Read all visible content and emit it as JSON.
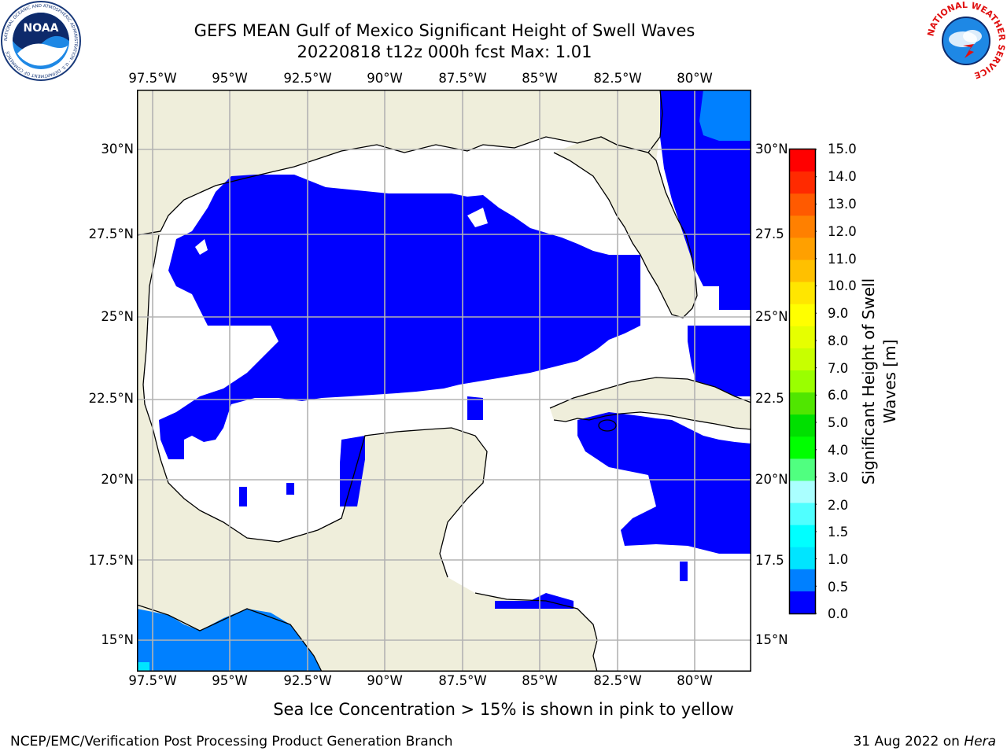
{
  "title": {
    "line1": "GEFS MEAN Gulf of Mexico Significant Height of Swell Waves",
    "line2": "20220818 t12z 000h fcst   Max: 1.01"
  },
  "logos": {
    "noaa": {
      "text": "NOAA",
      "ring_text": "NATIONAL OCEANIC AND ATMOSPHERIC ADMINISTRATION · U.S. DEPARTMENT OF COMMERCE",
      "icon": "noaa-logo-icon"
    },
    "nws": {
      "ring_text": "NATIONAL WEATHER SERVICE",
      "icon": "nws-logo-icon"
    }
  },
  "map": {
    "lon_labels": [
      "97.5°W",
      "95°W",
      "92.5°W",
      "90°W",
      "87.5°W",
      "85°W",
      "82.5°W",
      "80°W"
    ],
    "lat_labels_left": [
      "30°N",
      "27.5°N",
      "25°N",
      "22.5°N",
      "20°N",
      "17.5°N",
      "15°N"
    ],
    "lat_labels_right": [
      "30°N",
      "27.5",
      "25°N",
      "22.5",
      "20°N",
      "17.5",
      "15°N"
    ],
    "colors": {
      "land": "#efeedb",
      "ocean_white": "#ffffff",
      "swell_0_05": "#0000ff",
      "swell_05_10": "#0080ff",
      "swell_10_15": "#00e5ff",
      "grid": "#b3b3b3",
      "coast": "#000000"
    }
  },
  "colorbar": {
    "ticks": [
      "15.0",
      "14.0",
      "13.0",
      "12.0",
      "11.0",
      "10.0",
      "9.0",
      "8.0",
      "7.0",
      "6.0",
      "5.0",
      "4.0",
      "3.0",
      "2.0",
      "1.5",
      "1.0",
      "0.5",
      "0.0"
    ],
    "label_line1": "Significant Height of Swell",
    "label_line2": "Waves [m]",
    "colors_top_to_bottom": [
      "#ff0000",
      "#ff2a00",
      "#ff5a00",
      "#ff8000",
      "#ffa000",
      "#ffc000",
      "#ffe600",
      "#ffff00",
      "#e6ff00",
      "#c8ff00",
      "#9aff00",
      "#50e600",
      "#00e000",
      "#00ff00",
      "#50ff80",
      "#aaffff",
      "#50ffff",
      "#00ffff",
      "#00e5ff",
      "#0080ff",
      "#0000ff"
    ]
  },
  "caption": "Sea Ice Concentration > 15% is shown in pink to yellow",
  "footer": {
    "left": "NCEP/EMC/Verification Post Processing Product Generation Branch",
    "right_date": "31 Aug 2022 on",
    "right_host": "Hera"
  }
}
